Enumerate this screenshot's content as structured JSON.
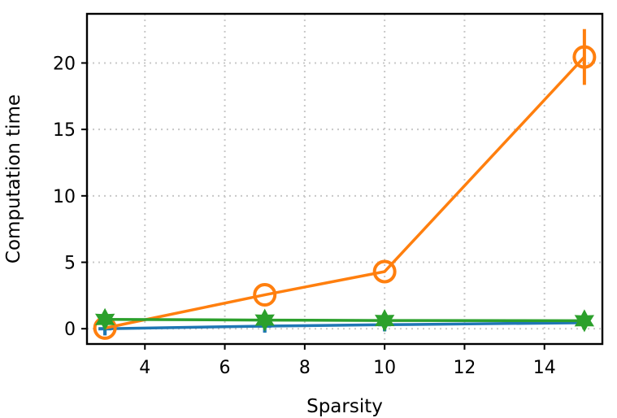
{
  "chart_data": {
    "type": "line",
    "title": "",
    "xlabel": "Sparsity",
    "ylabel": "Computation time",
    "xlim": [
      2.55,
      15.45
    ],
    "ylim": [
      -1.15,
      23.7
    ],
    "x_ticks": [
      4,
      6,
      8,
      10,
      12,
      14
    ],
    "y_ticks": [
      0,
      5,
      10,
      15,
      20
    ],
    "grid": true,
    "grid_style": "dotted",
    "legend": "none",
    "series": [
      {
        "color": "#1f77b4",
        "marker": "plus",
        "x": [
          3,
          7,
          10,
          15
        ],
        "y": [
          0.0,
          0.2,
          0.3,
          0.45
        ],
        "err": [
          0.5,
          0.5,
          0.5,
          0.1
        ]
      },
      {
        "color": "#ff7f0e",
        "marker": "circle",
        "x": [
          3,
          7,
          10,
          15
        ],
        "y": [
          0.05,
          2.55,
          4.3,
          20.45
        ],
        "err": [
          0.0,
          0.0,
          0.0,
          2.1
        ]
      },
      {
        "color": "#2ca02c",
        "marker": "star",
        "x": [
          3,
          7,
          10,
          15
        ],
        "y": [
          0.7,
          0.65,
          0.62,
          0.6
        ],
        "err": [
          0.0,
          0.0,
          0.0,
          0.0
        ]
      }
    ]
  }
}
